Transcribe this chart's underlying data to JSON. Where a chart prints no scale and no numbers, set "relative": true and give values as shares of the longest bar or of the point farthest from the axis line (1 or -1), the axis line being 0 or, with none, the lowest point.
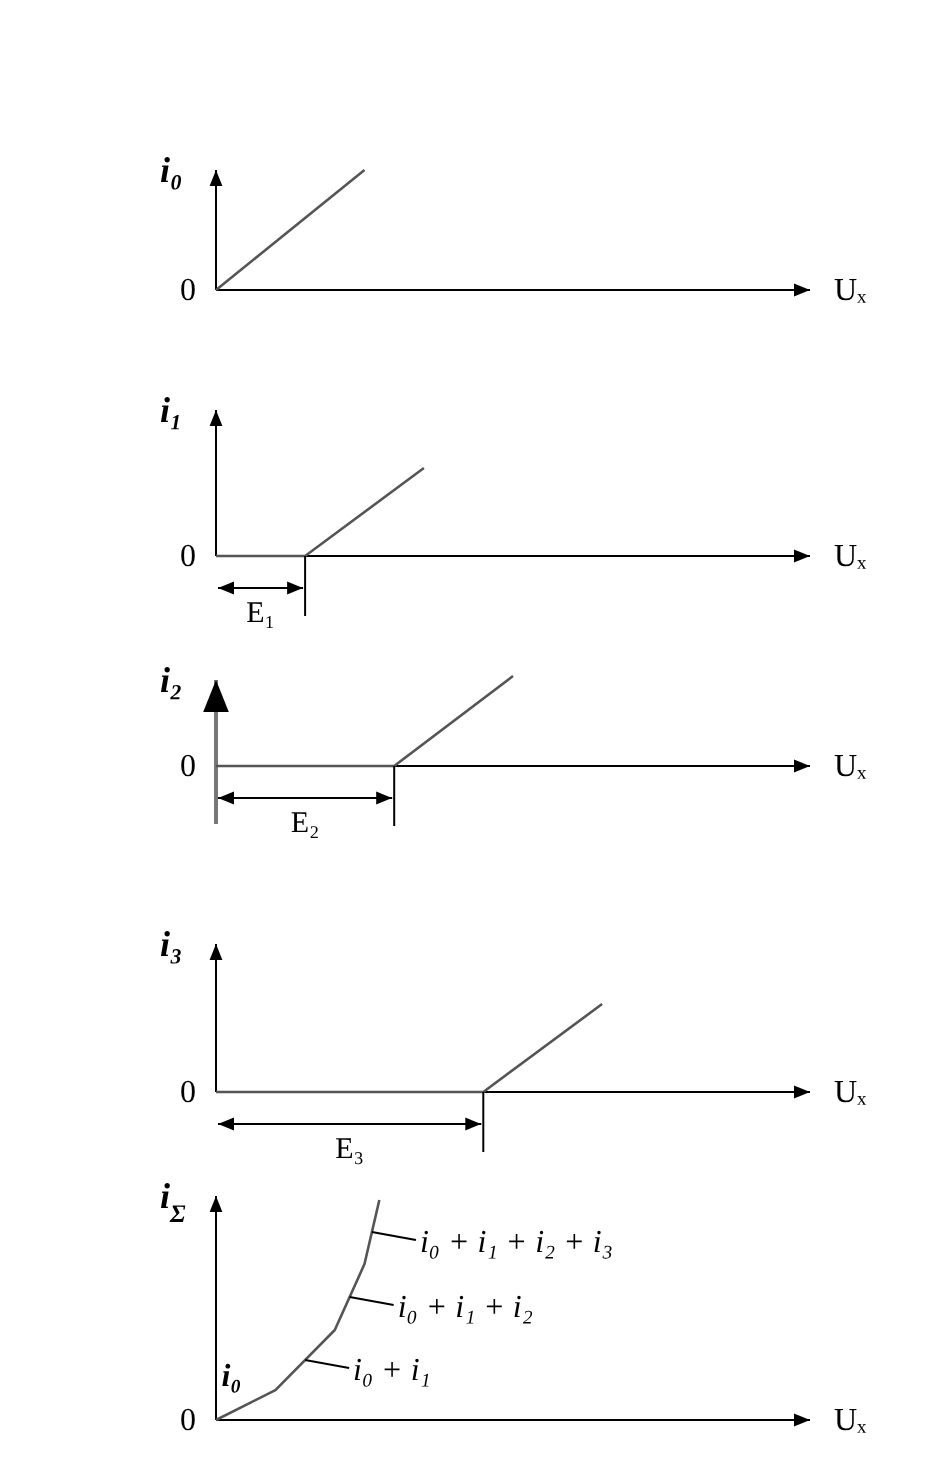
{
  "chart_data": [
    {
      "type": "line",
      "relative": true,
      "xlabel": "Uₓ",
      "ylabel": "i₀",
      "categories": [
        null,
        null,
        null,
        null,
        null,
        null,
        null,
        null,
        null,
        null,
        null,
        null,
        null,
        null,
        null,
        null,
        null,
        null,
        null,
        null,
        null,
        null,
        null,
        null,
        null,
        null,
        null,
        null,
        null,
        null,
        null,
        null,
        null,
        null,
        null,
        null,
        null,
        null,
        null,
        null,
        null
      ],
      "series": [
        {
          "color": "#555555",
          "values": [
            0,
            null,
            null,
            null,
            null,
            null,
            null,
            null,
            null,
            null,
            1,
            null,
            null,
            null,
            null,
            null,
            null,
            null,
            null,
            null,
            null,
            null,
            null,
            null,
            null,
            null,
            null,
            null,
            null,
            null,
            null,
            null,
            null,
            null,
            null,
            null,
            null,
            null,
            null,
            null,
            null
          ]
        }
      ],
      "annotations": [
        "0"
      ]
    },
    {
      "type": "line",
      "relative": true,
      "xlabel": "Uₓ",
      "ylabel": "i₁",
      "categories": [
        null,
        null,
        null,
        null,
        null,
        null,
        null,
        null,
        null,
        null,
        null,
        null,
        null,
        null,
        null,
        null,
        null,
        null,
        null,
        null,
        null,
        null,
        null,
        null,
        null,
        null,
        null,
        null,
        null,
        null,
        null,
        null,
        null,
        null,
        null,
        null,
        null,
        null,
        null,
        null,
        null
      ],
      "series": [
        {
          "color": "#555555",
          "values": [
            0,
            null,
            null,
            null,
            null,
            null,
            0,
            null,
            null,
            null,
            null,
            null,
            null,
            null,
            1,
            null,
            null,
            null,
            null,
            null,
            null,
            null,
            null,
            null,
            null,
            null,
            null,
            null,
            null,
            null,
            null,
            null,
            null,
            null,
            null,
            null,
            null,
            null,
            null,
            null,
            null
          ]
        }
      ],
      "annotations": [
        "0",
        "E₁"
      ]
    },
    {
      "type": "line",
      "relative": true,
      "xlabel": "Uₓ",
      "ylabel": "i₂",
      "categories": [
        null,
        null,
        null,
        null,
        null,
        null,
        null,
        null,
        null,
        null,
        null,
        null,
        null,
        null,
        null,
        null,
        null,
        null,
        null,
        null,
        null,
        null,
        null,
        null,
        null,
        null,
        null,
        null,
        null,
        null,
        null,
        null,
        null,
        null,
        null,
        null,
        null,
        null,
        null,
        null,
        null
      ],
      "series": [
        {
          "color": "#555555",
          "values": [
            0,
            null,
            null,
            null,
            null,
            null,
            null,
            null,
            null,
            null,
            null,
            null,
            0,
            null,
            null,
            null,
            null,
            null,
            null,
            null,
            1,
            null,
            null,
            null,
            null,
            null,
            null,
            null,
            null,
            null,
            null,
            null,
            null,
            null,
            null,
            null,
            null,
            null,
            null,
            null,
            null
          ]
        }
      ],
      "annotations": [
        "0",
        "E₂"
      ]
    },
    {
      "type": "line",
      "relative": true,
      "xlabel": "Uₓ",
      "ylabel": "i₃",
      "categories": [
        null,
        null,
        null,
        null,
        null,
        null,
        null,
        null,
        null,
        null,
        null,
        null,
        null,
        null,
        null,
        null,
        null,
        null,
        null,
        null,
        null,
        null,
        null,
        null,
        null,
        null,
        null,
        null,
        null,
        null,
        null,
        null,
        null,
        null,
        null,
        null,
        null,
        null,
        null,
        null,
        null
      ],
      "series": [
        {
          "color": "#555555",
          "values": [
            0,
            null,
            null,
            null,
            null,
            null,
            null,
            null,
            null,
            null,
            null,
            null,
            null,
            null,
            null,
            null,
            null,
            null,
            0,
            null,
            null,
            null,
            null,
            null,
            null,
            null,
            1,
            null,
            null,
            null,
            null,
            null,
            null,
            null,
            null,
            null,
            null,
            null,
            null,
            null,
            null
          ]
        }
      ],
      "annotations": [
        "0",
        "E₃"
      ]
    },
    {
      "type": "line",
      "relative": true,
      "xlabel": "Uₓ",
      "ylabel": "i$_{Σ}$",
      "categories": [
        null,
        null,
        null,
        null,
        null,
        null,
        null,
        null,
        null,
        null,
        null,
        null,
        null,
        null,
        null,
        null,
        null,
        null,
        null,
        null,
        null,
        null,
        null,
        null,
        null,
        null,
        null,
        null,
        null,
        null,
        null,
        null,
        null,
        null,
        null,
        null,
        null,
        null,
        null,
        null,
        null
      ],
      "series": [
        {
          "color": "#555555",
          "values": [
            0,
            null,
            null,
            null,
            0.136,
            null,
            null,
            null,
            0.409,
            null,
            0.709,
            1,
            null,
            null,
            null,
            null,
            null,
            null,
            null,
            null,
            null,
            null,
            null,
            null,
            null,
            null,
            null,
            null,
            null,
            null,
            null,
            null,
            null,
            null,
            null,
            null,
            null,
            null,
            null,
            null,
            null
          ]
        }
      ],
      "annotations": [
        "0",
        "i₀",
        "i₀ + i₁",
        "i₀ + i₁ +  i₂",
        "i₀ + i₁ +  i₂  + i₃"
      ]
    }
  ]
}
